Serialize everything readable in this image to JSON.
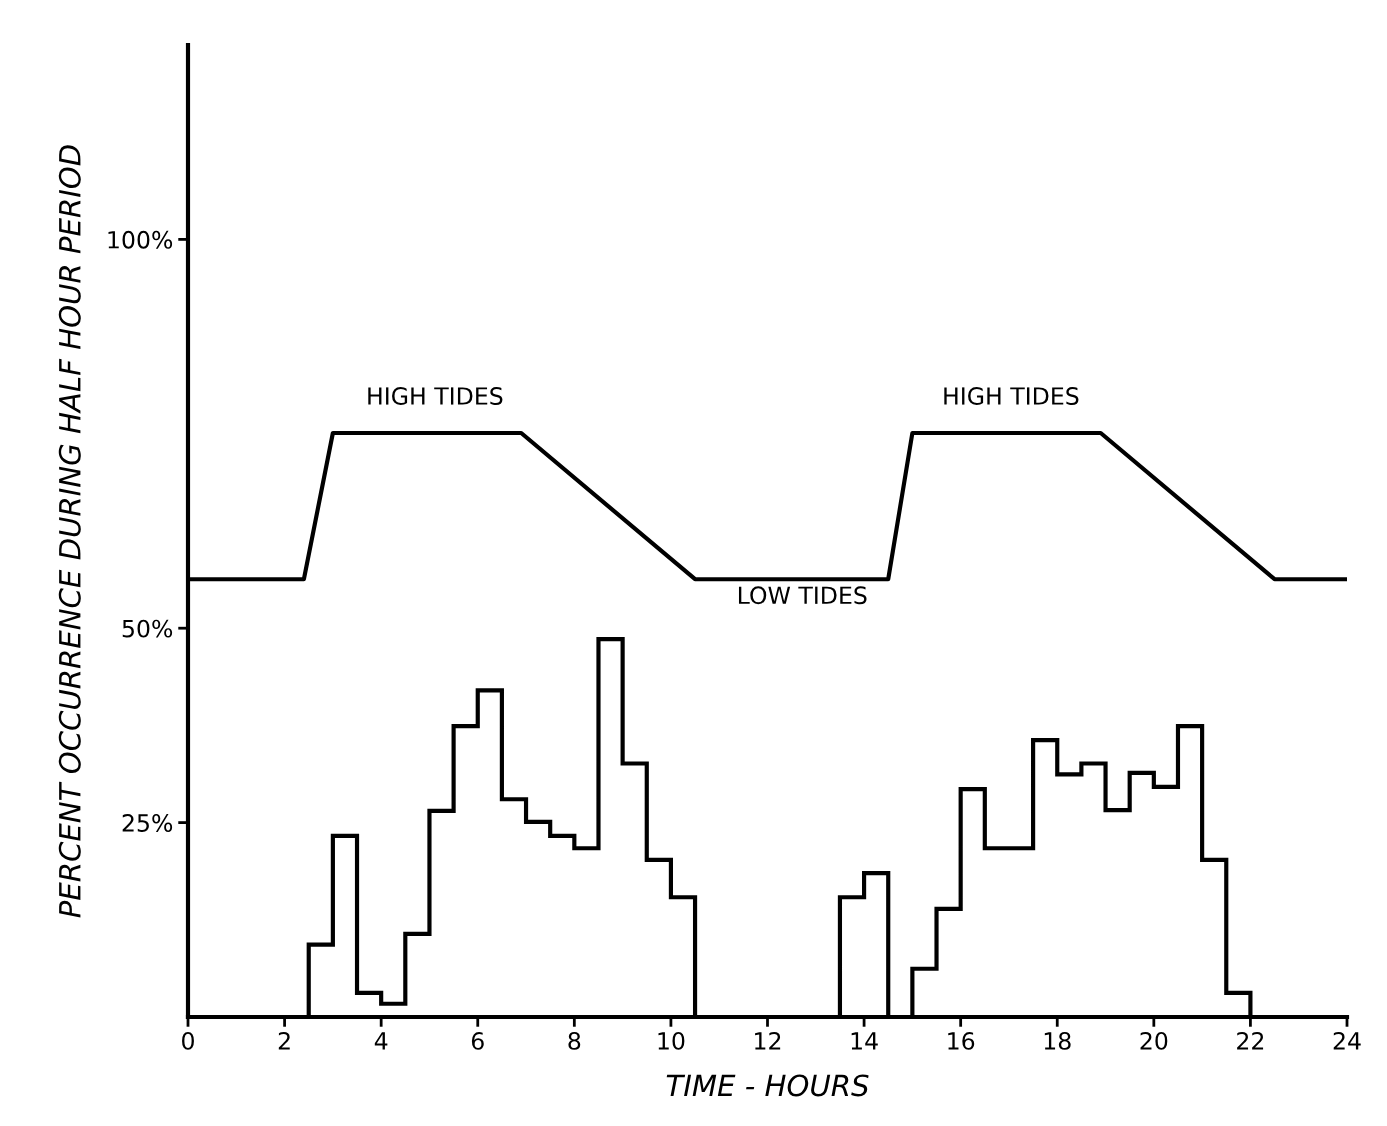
{
  "chart_data": {
    "type": "histogram",
    "xlabel": "TIME - HOURS",
    "ylabel": "PERCENT OCCURRENCE DURING HALF HOUR PERIOD",
    "bins": [
      0,
      0.5,
      1,
      1.5,
      2,
      2.5,
      3,
      3.5,
      4,
      4.5,
      5,
      5.5,
      6,
      6.5,
      7,
      7.5,
      8,
      8.5,
      9,
      9.5,
      10,
      10.5,
      11,
      11.5,
      12,
      12.5,
      13,
      13.5,
      14,
      14.5,
      15,
      15.5,
      16,
      16.5,
      17,
      17.5,
      18,
      18.5,
      19,
      19.5,
      20,
      20.5,
      21,
      21.5,
      22,
      22.5,
      23,
      23.5,
      24
    ],
    "values": [
      0,
      0,
      0,
      0,
      0,
      9.3,
      23.3,
      3.1,
      1.7,
      10.7,
      26.5,
      37.4,
      42.0,
      28.0,
      25.1,
      23.3,
      21.7,
      48.6,
      32.6,
      20.2,
      15.4,
      0,
      0,
      0,
      0,
      0,
      0,
      15.4,
      18.5,
      0,
      6.2,
      13.9,
      29.3,
      21.7,
      21.7,
      35.6,
      31.2,
      32.6,
      26.6,
      31.4,
      29.6,
      37.4,
      20.2,
      3.1,
      0,
      0,
      0,
      0
    ],
    "color": "#000000",
    "series": [
      {
        "type": "line",
        "color": "#000000",
        "x": [
          0,
          2.4,
          3.0,
          6.9,
          10.5,
          14.5,
          15.0,
          18.9,
          22.5,
          24
        ],
        "values": [
          56.3,
          56.3,
          75.1,
          75.1,
          56.3,
          56.3,
          75.1,
          75.1,
          56.3,
          56.3
        ]
      }
    ],
    "annotations": [
      "HIGH TIDES",
      "HIGH TIDES",
      "LOW TIDES"
    ],
    "xlim": [
      0,
      24
    ],
    "xticks": [
      0,
      2,
      4,
      6,
      8,
      10,
      12,
      14,
      16,
      18,
      20,
      22,
      24
    ],
    "ylim": [
      0,
      125
    ],
    "yticks": [
      {
        "value": 25,
        "label": "25%"
      },
      {
        "value": 50,
        "label": "50%"
      },
      {
        "value": 100,
        "label": "100%"
      }
    ],
    "grid": false,
    "legend": false
  }
}
